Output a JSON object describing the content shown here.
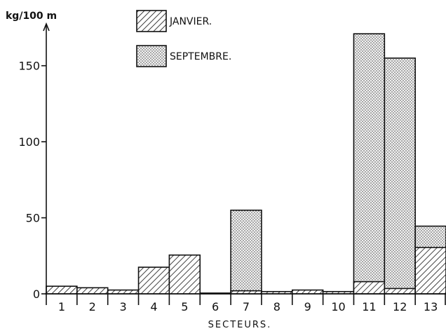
{
  "chart_data": {
    "type": "bar",
    "title": "",
    "xlabel": "SECTEURS.",
    "ylabel": "kg/100 m",
    "ylim": [
      0,
      172
    ],
    "yticks": [
      0,
      50,
      100,
      150
    ],
    "grid": false,
    "legend_position": "top-center",
    "categories": [
      "1",
      "2",
      "3",
      "4",
      "5",
      "6",
      "7",
      "8",
      "9",
      "10",
      "11",
      "12",
      "13"
    ],
    "series": [
      {
        "name": "JANVIER.",
        "pattern": "diagonal-hatch",
        "values": [
          5,
          4,
          2.5,
          17.5,
          25.5,
          0.5,
          2,
          1.5,
          2.5,
          1.5,
          8,
          3.5,
          30.5
        ]
      },
      {
        "name": "SEPTEMBRE.",
        "pattern": "stipple",
        "values": [
          0,
          0,
          0,
          0,
          0,
          0,
          55,
          0,
          0,
          0,
          171,
          155,
          44.5
        ]
      }
    ]
  }
}
